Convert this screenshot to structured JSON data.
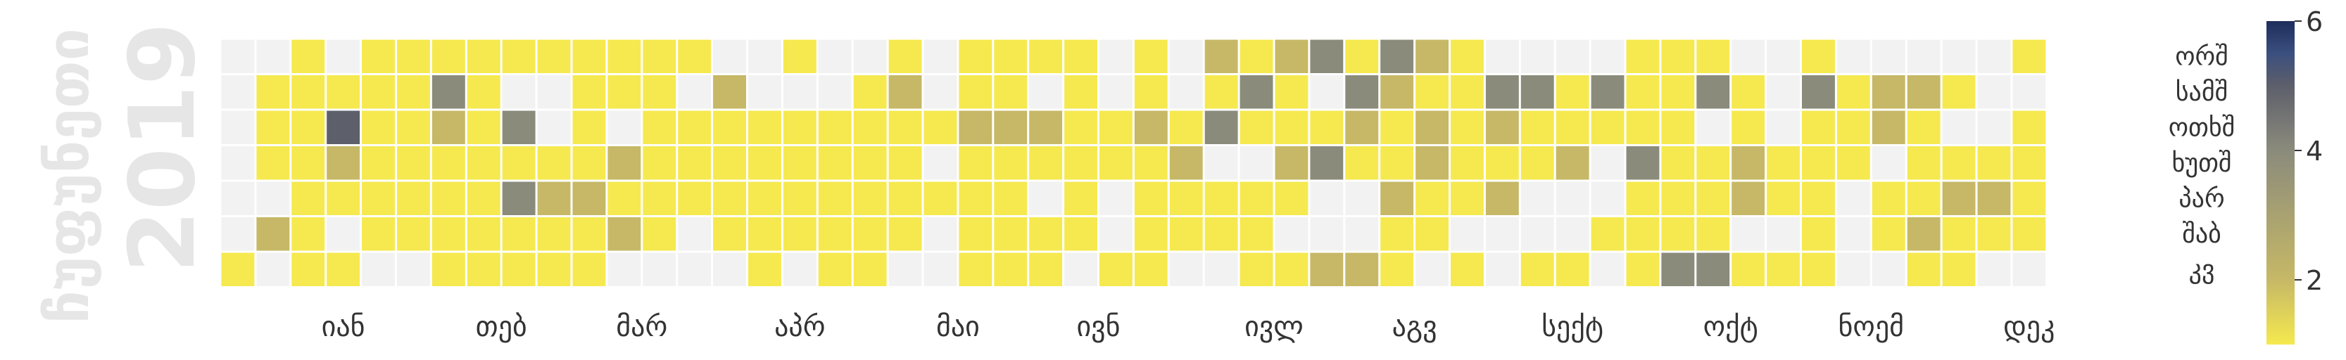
{
  "chart_data": {
    "type": "heatmap",
    "title": "",
    "year_label": "2019",
    "year_caption": "ჩუფუნეთი",
    "weekday_labels": [
      "ორშ",
      "სამშ",
      "ოთხშ",
      "ხუთშ",
      "პარ",
      "შაბ",
      "კვ"
    ],
    "month_labels": [
      "იან",
      "თებ",
      "მარ",
      "აპრ",
      "მაი",
      "ივნ",
      "ივლ",
      "აგვ",
      "სექტ",
      "ოქტ",
      "ნოემ",
      "დეკ"
    ],
    "month_week_positions": [
      3.0,
      7.5,
      11.5,
      16.0,
      20.5,
      24.5,
      29.5,
      33.5,
      38.0,
      42.5,
      46.5,
      51.0
    ],
    "colorbar": {
      "min": 1,
      "max": 6,
      "ticks": [
        2,
        4,
        6
      ]
    },
    "colors": {
      "empty": "#f2f2f2",
      "scale": [
        "#f5e94f",
        "#c6b866",
        "#8b8b7c",
        "#5d5f6b",
        "#3b4f7e",
        "#1e2d5c"
      ]
    },
    "grid": [
      "0010111111111100100101111010212313210000111001000001",
      "0111113100111020001201101010131032113313113103122100",
      "0114112130101111111112221121311121212111110101121001",
      "0112111111121111111101111112002311211120311211101111",
      "0011111132211111111111101011111002112000111211011221",
      "0210111111121011111101111011110001100001111001012111",
      "1011001111100001011001110110011221010110133111001100"
    ]
  }
}
